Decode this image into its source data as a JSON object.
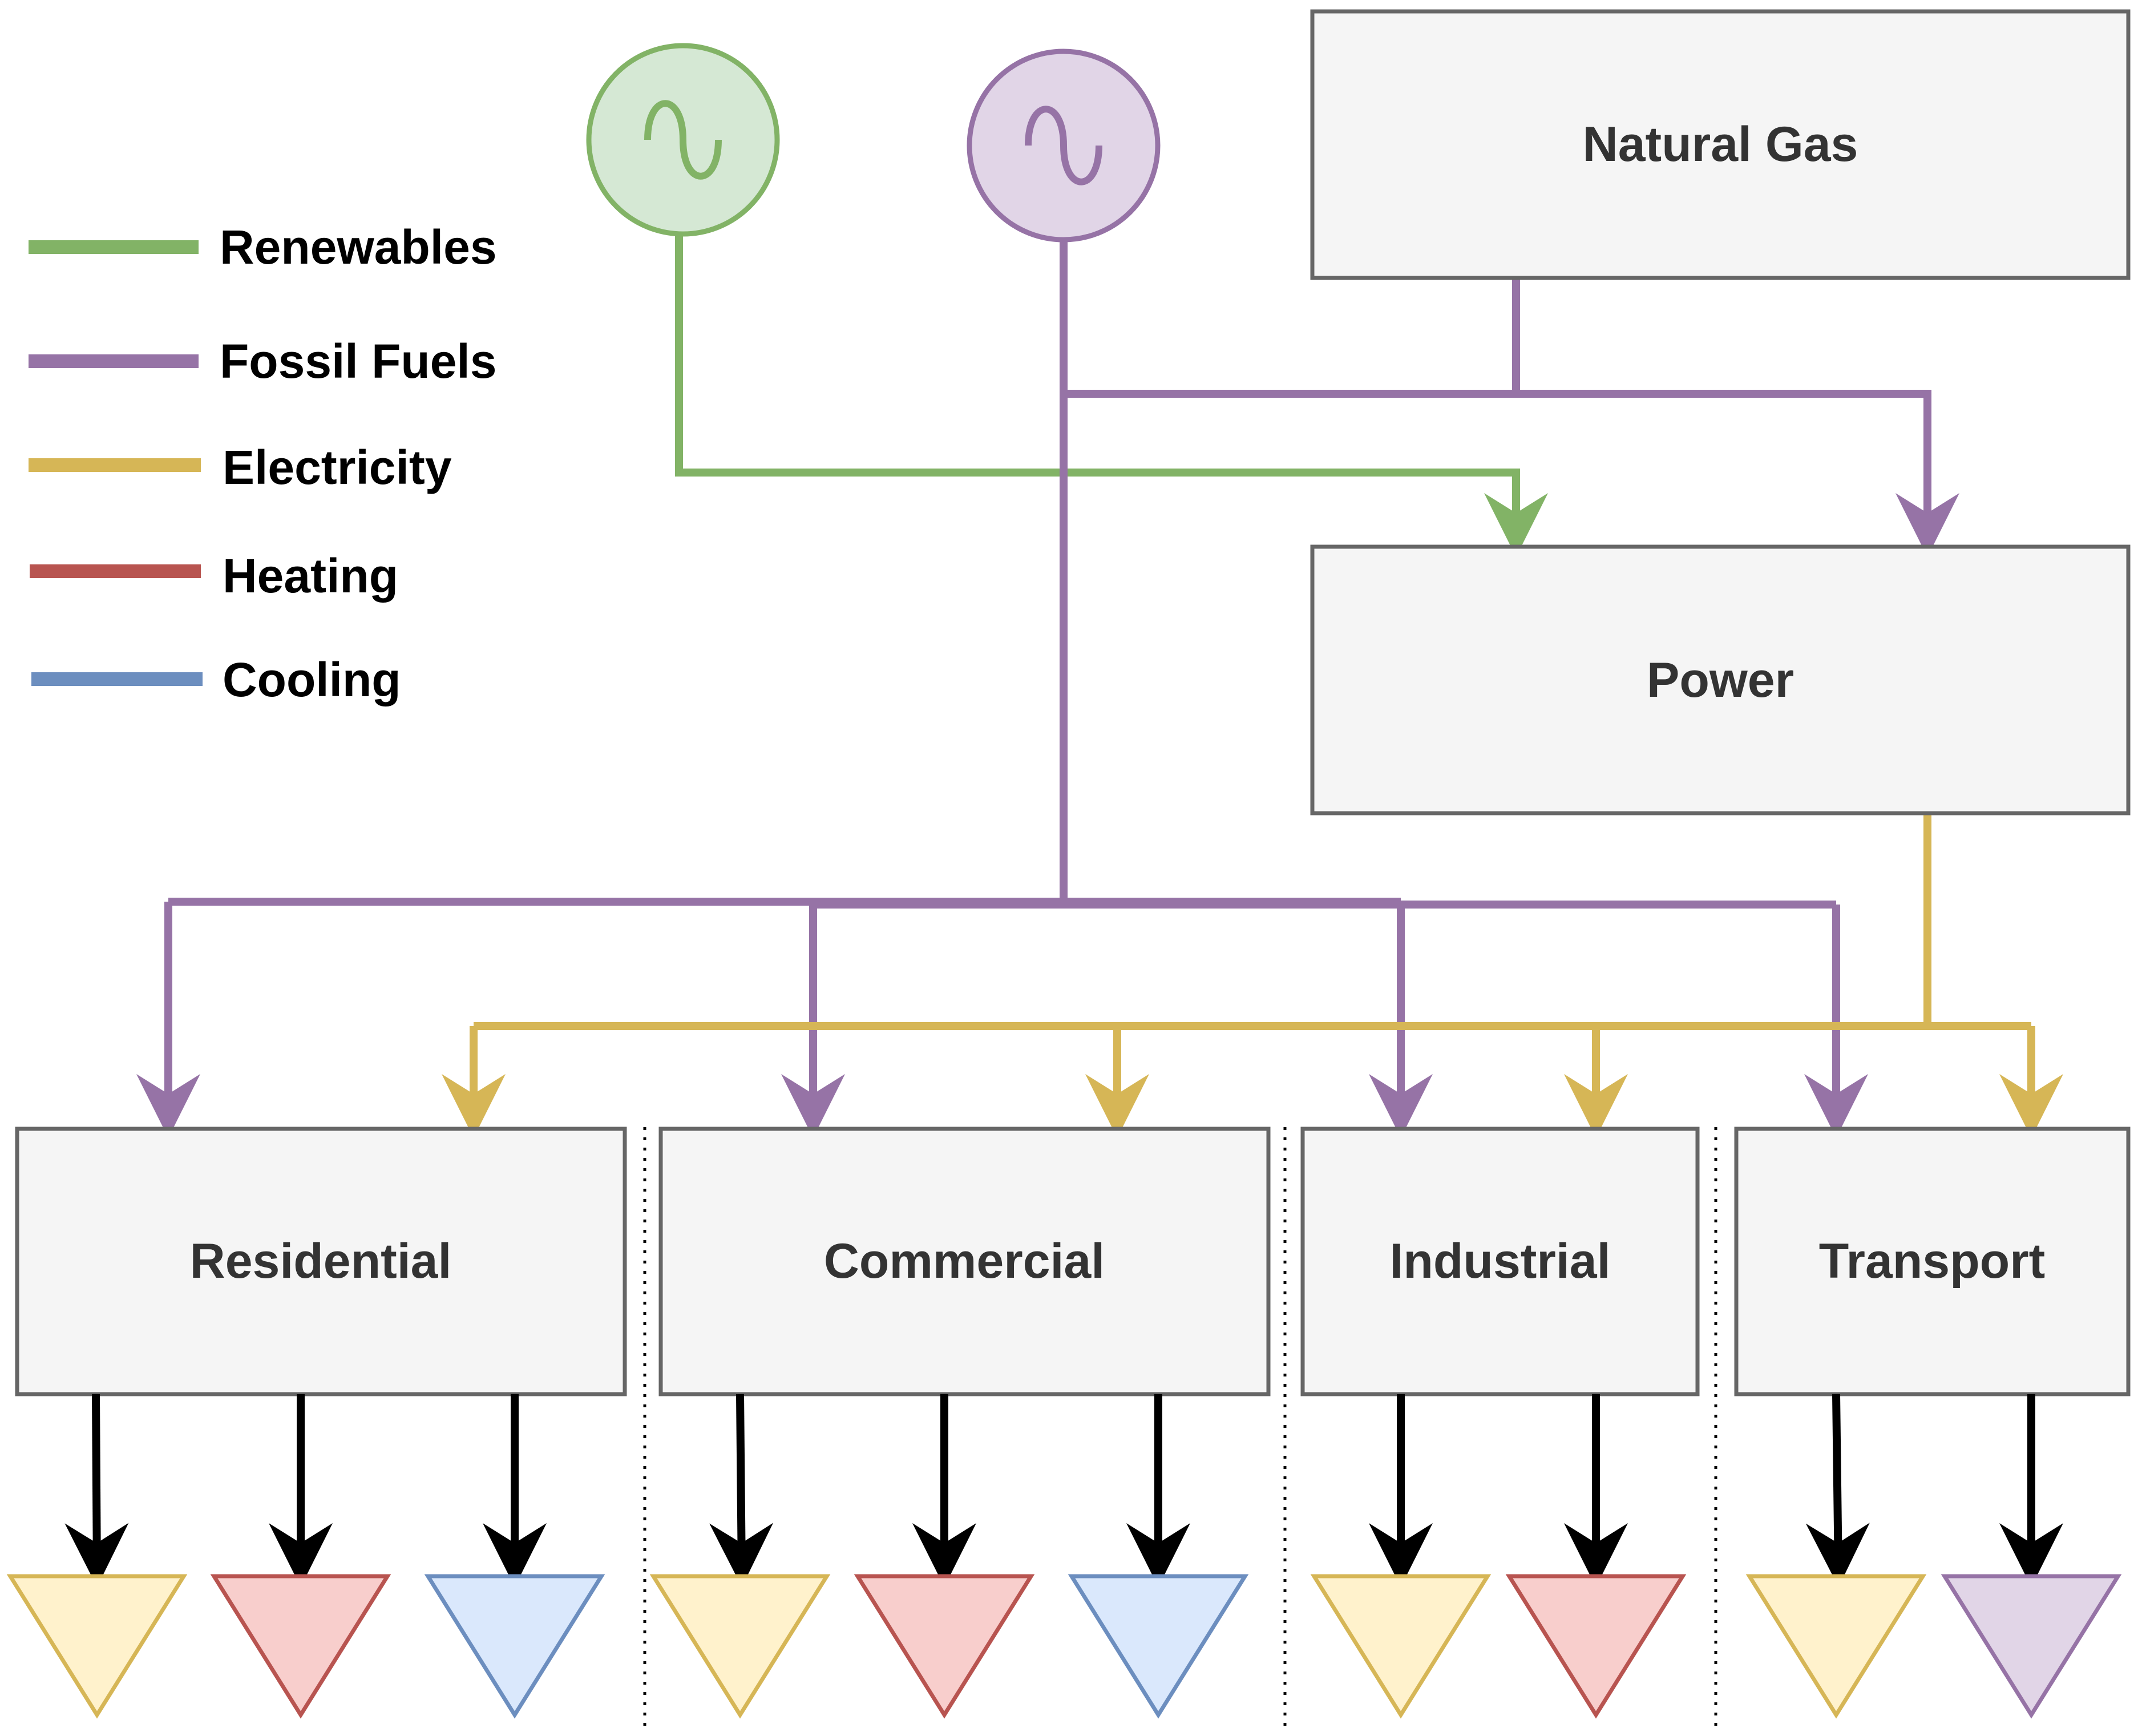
{
  "legend": {
    "items": [
      {
        "label": "Renewables",
        "color": "#82b366"
      },
      {
        "label": "Fossil Fuels",
        "color": "#9673a6"
      },
      {
        "label": "Electricity",
        "color": "#d6b656"
      },
      {
        "label": "Heating",
        "color": "#b85450"
      },
      {
        "label": "Cooling",
        "color": "#6c8ebf"
      }
    ]
  },
  "sources": {
    "renewables": {
      "icon": "ac-generator-icon",
      "stroke": "#82b366",
      "fill": "#d5e8d4"
    },
    "fossil": {
      "icon": "ac-generator-icon",
      "stroke": "#9673a6",
      "fill": "#e1d5e7"
    }
  },
  "nodes": {
    "natural_gas": "Natural Gas",
    "power": "Power",
    "residential": "Residential",
    "commercial": "Commercial",
    "industrial": "Industrial",
    "transport": "Transport"
  },
  "colors": {
    "box_fill": "#f5f5f5",
    "box_stroke": "#666666",
    "label_text": "#333333",
    "flow_out": "#000000",
    "electricity_fill": "#fff2cc",
    "heating_fill": "#f8cecc",
    "cooling_fill": "#dae8fc",
    "fossil_fill": "#e1d5e7"
  },
  "outputs": {
    "residential": [
      "electricity",
      "heating",
      "cooling"
    ],
    "commercial": [
      "electricity",
      "heating",
      "cooling"
    ],
    "industrial": [
      "electricity",
      "heating"
    ],
    "transport": [
      "electricity",
      "fossil-fuels"
    ]
  }
}
